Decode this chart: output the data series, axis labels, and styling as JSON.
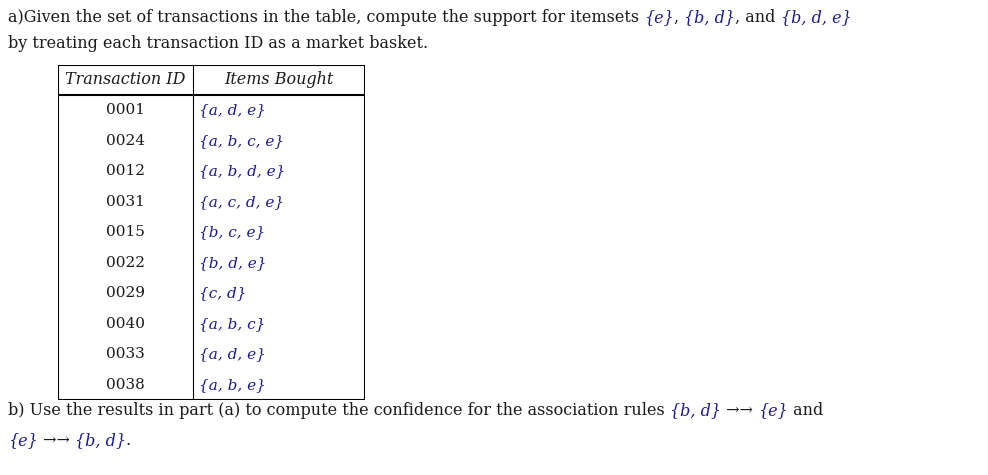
{
  "parts_line1": [
    [
      "a)Given the set of transactions in the table, compute the support for itemsets ",
      false
    ],
    [
      "{e}",
      true
    ],
    [
      ", ",
      false
    ],
    [
      "{b, d}",
      true
    ],
    [
      ", and ",
      false
    ],
    [
      "{b, d, e}",
      true
    ]
  ],
  "line2": "by treating each transaction ID as a market basket.",
  "col_headers": [
    "Transaction ID",
    "Items Bought"
  ],
  "transactions": [
    [
      "0001",
      "{a, d, e}"
    ],
    [
      "0024",
      "{a, b, c, e}"
    ],
    [
      "0012",
      "{a, b, d, e}"
    ],
    [
      "0031",
      "{a, c, d, e}"
    ],
    [
      "0015",
      "{b, c, e}"
    ],
    [
      "0022",
      "{b, d, e}"
    ],
    [
      "0029",
      "{c, d}"
    ],
    [
      "0040",
      "{a, b, c}"
    ],
    [
      "0033",
      "{a, d, e}"
    ],
    [
      "0038",
      "{a, b, e}"
    ]
  ],
  "parts_footer1": [
    [
      "b) Use the results in part (a) to compute the confidence for the association rules ",
      false
    ],
    [
      "{b, d}",
      true
    ],
    [
      " →→ ",
      false
    ],
    [
      "{e}",
      true
    ],
    [
      " and",
      false
    ]
  ],
  "parts_footer2": [
    [
      "{e}",
      true
    ],
    [
      " →→ ",
      false
    ],
    [
      "{b, d}",
      true
    ],
    [
      ".",
      false
    ]
  ],
  "bg_color": "#ffffff",
  "text_color": "#1a1a1a",
  "italic_color": "#1a1a8c",
  "fs_main": 11.5,
  "fs_table": 11.0,
  "fs_header": 11.5
}
